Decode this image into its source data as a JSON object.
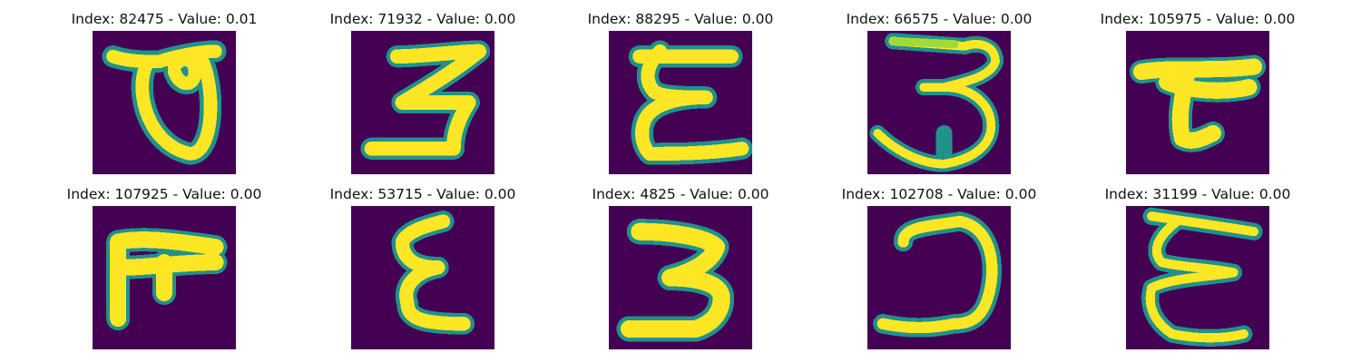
{
  "figure": {
    "colormap": "viridis",
    "colors": {
      "background": "#440154",
      "mid": "#21918c",
      "highlight": "#fde725"
    },
    "panels": [
      {
        "title": "Index: 82475 - Value: 0.01",
        "glyph": "theta-loop"
      },
      {
        "title": "Index: 71932 - Value: 0.00",
        "glyph": "three"
      },
      {
        "title": "Index: 88295 - Value: 0.00",
        "glyph": "epsilon-bar"
      },
      {
        "title": "Index: 66575 - Value: 0.00",
        "glyph": "three-bar"
      },
      {
        "title": "Index: 105975 - Value: 0.00",
        "glyph": "tee"
      },
      {
        "title": "Index: 107925 - Value: 0.00",
        "glyph": "pi-f"
      },
      {
        "title": "Index: 53715 - Value: 0.00",
        "glyph": "epsilon"
      },
      {
        "title": "Index: 4825 - Value: 0.00",
        "glyph": "three-bold"
      },
      {
        "title": "Index: 102708 - Value: 0.00",
        "glyph": "hook-j"
      },
      {
        "title": "Index: 31199 - Value: 0.00",
        "glyph": "epsilon-thin"
      }
    ]
  }
}
